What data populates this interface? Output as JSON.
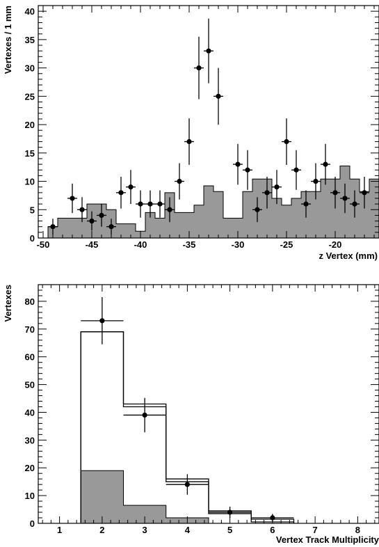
{
  "chart_data": [
    {
      "type": "histogram",
      "xlabel": "z Vertex (mm)",
      "ylabel": "Vertexes / 1 mm",
      "xlim": [
        -50.5,
        -15.5
      ],
      "ylim": [
        0,
        41
      ],
      "xticks": [
        -50,
        -45,
        -40,
        -35,
        -30,
        -25,
        -20
      ],
      "yticks": [
        0,
        5,
        10,
        15,
        20,
        25,
        30,
        35,
        40
      ],
      "background_hist": {
        "fill": "#999999",
        "bin_edges": [
          -49.5,
          -48.5,
          -47.5,
          -46.5,
          -45.5,
          -44.5,
          -43.5,
          -42.5,
          -41.5,
          -40.5,
          -39.5,
          -38.5,
          -37.5,
          -36.5,
          -35.5,
          -34.5,
          -33.5,
          -32.5,
          -31.5,
          -30.5,
          -29.5,
          -28.5,
          -27.5,
          -26.5,
          -25.5,
          -24.5,
          -23.5,
          -22.5,
          -21.5,
          -20.5,
          -19.5,
          -18.5,
          -17.5,
          -16.5,
          -15.5
        ],
        "values": [
          2,
          3.5,
          3.5,
          3.5,
          6,
          6,
          5,
          2.5,
          2.5,
          1.2,
          4.5,
          3.5,
          8,
          4.5,
          4.5,
          5.8,
          9.2,
          8.2,
          3.5,
          3.5,
          8.2,
          10.4,
          10.4,
          7,
          5.8,
          7,
          8.2,
          8.2,
          10.4,
          10.4,
          12.7,
          10.4,
          8.2,
          10.4
        ]
      },
      "points": {
        "x": [
          -49,
          -47,
          -46,
          -45,
          -44,
          -43,
          -42,
          -41,
          -40,
          -39,
          -38,
          -37,
          -36,
          -35,
          -34,
          -33,
          -32,
          -30,
          -29,
          -28,
          -27,
          -26,
          -25,
          -24,
          -23,
          -22,
          -21,
          -20,
          -19,
          -18,
          -17
        ],
        "y": [
          2,
          7,
          5,
          3,
          4,
          2,
          8,
          9,
          6,
          6,
          6,
          5,
          10,
          17,
          30,
          33,
          25,
          13,
          12,
          5,
          8,
          9,
          17,
          12,
          6,
          10,
          13,
          8,
          7,
          6,
          8
        ],
        "yerr": [
          1.4,
          2.6,
          2.2,
          1.7,
          2.0,
          1.4,
          2.8,
          3.0,
          2.4,
          2.4,
          2.4,
          2.2,
          3.2,
          4.1,
          5.5,
          5.7,
          5.0,
          3.6,
          3.5,
          2.2,
          2.8,
          3.0,
          4.1,
          3.5,
          2.4,
          3.2,
          3.6,
          2.8,
          2.6,
          2.4,
          2.8
        ]
      }
    },
    {
      "type": "histogram",
      "xlabel": "Vertex Track Multiplicity",
      "ylabel": "Vertexes",
      "xlim": [
        0.5,
        8.5
      ],
      "ylim": [
        0,
        86
      ],
      "xticks": [
        1,
        2,
        3,
        4,
        5,
        6,
        7,
        8
      ],
      "yticks": [
        0,
        10,
        20,
        30,
        40,
        50,
        60,
        70,
        80
      ],
      "background_hist": {
        "fill": "#999999",
        "bin_edges": [
          1.5,
          2.5,
          3.5,
          4.5
        ],
        "values": [
          19,
          6.5,
          2
        ]
      },
      "mc_hist_1": {
        "bin_edges": [
          1.5,
          2.5,
          3.5,
          4.5,
          5.5,
          6.5
        ],
        "values": [
          69,
          43,
          16,
          4.5,
          1.5
        ]
      },
      "mc_hist_2": {
        "bin_edges": [
          1.5,
          2.5,
          3.5,
          4.5,
          5.5,
          6.5
        ],
        "values": [
          69,
          42,
          15,
          3.5,
          0.5
        ]
      },
      "points": {
        "x": [
          2,
          3,
          4,
          5,
          6
        ],
        "y": [
          73,
          39,
          14,
          4,
          2
        ],
        "yerr": [
          8.5,
          6.2,
          3.7,
          2.0,
          1.4
        ]
      }
    }
  ]
}
